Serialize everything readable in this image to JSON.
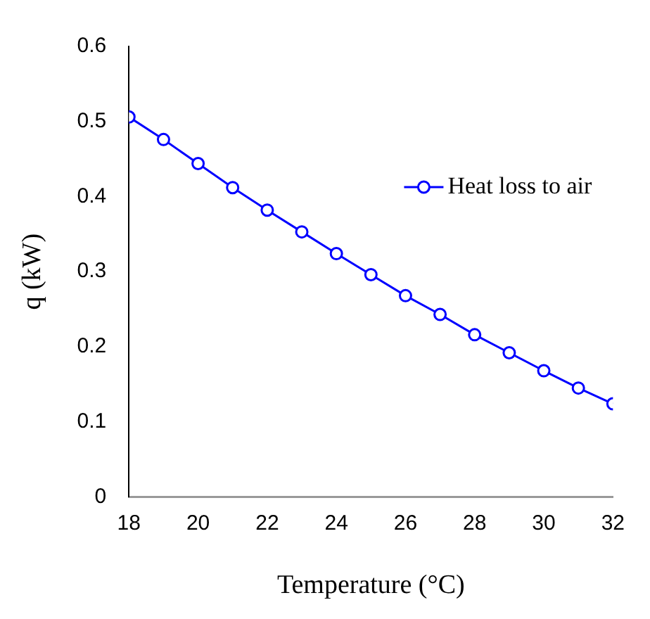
{
  "chart_data": {
    "type": "line",
    "xlabel": "Temperature (°C)",
    "ylabel": "q (kW)",
    "x": [
      18,
      19,
      20,
      21,
      22,
      23,
      24,
      25,
      26,
      27,
      28,
      29,
      30,
      31,
      32
    ],
    "series": [
      {
        "name": "Heat loss to air",
        "color": "#0000ff",
        "values": [
          0.506,
          0.476,
          0.444,
          0.412,
          0.382,
          0.353,
          0.324,
          0.296,
          0.268,
          0.243,
          0.216,
          0.192,
          0.168,
          0.145,
          0.124
        ]
      }
    ],
    "xlim": [
      18,
      32
    ],
    "xticks": [
      18,
      20,
      22,
      24,
      26,
      28,
      30,
      32
    ],
    "ylim": [
      0,
      0.6
    ],
    "yticks": [
      0,
      0.1,
      0.2,
      0.3,
      0.4,
      0.5,
      0.6
    ],
    "grid": false,
    "legend": "top right",
    "marker": "circle",
    "line_style": "solid"
  }
}
